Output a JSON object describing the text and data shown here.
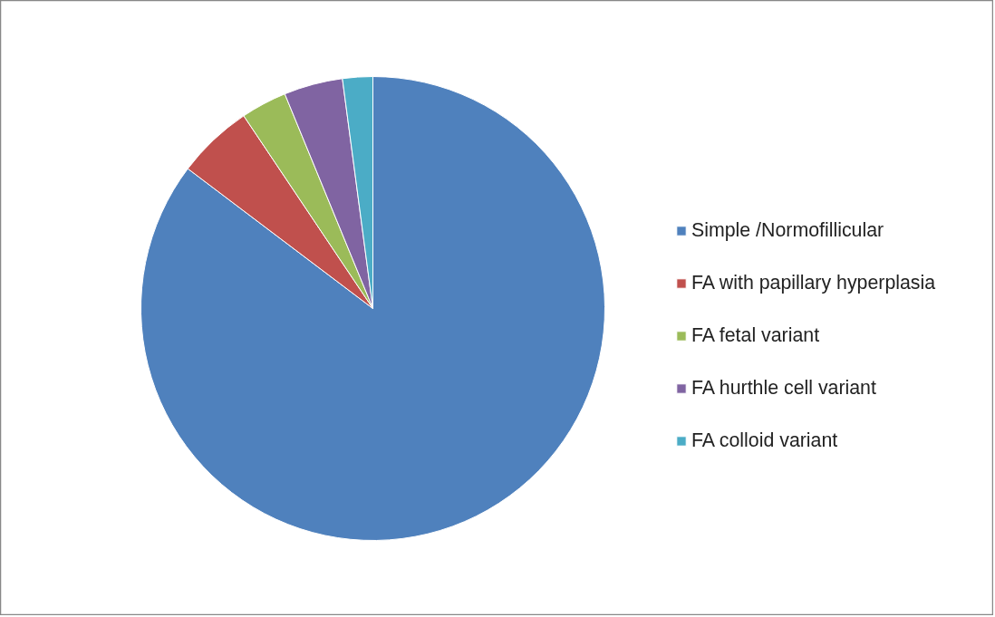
{
  "chart_data": {
    "type": "pie",
    "categories": [
      "Simple /Normofillicular",
      "FA with papillary hyperplasia",
      "FA fetal variant",
      "FA hurthle cell variant",
      "FA colloid variant"
    ],
    "values": [
      85.3,
      5.3,
      3.2,
      4.1,
      2.1
    ],
    "colors": [
      "#4f81bd",
      "#c0504d",
      "#9bbb59",
      "#8064a2",
      "#4bacc6"
    ],
    "legend": "right"
  }
}
